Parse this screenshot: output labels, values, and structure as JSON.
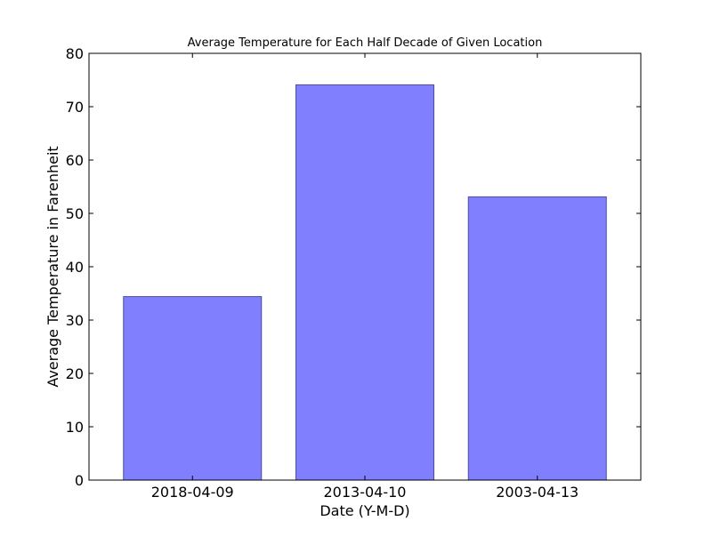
{
  "chart_data": {
    "type": "bar",
    "title": "Average Temperature for Each Half Decade of Given Location",
    "xlabel": "Date (Y-M-D)",
    "ylabel": "Average Temperature in Farenheit",
    "categories": [
      "2018-04-09",
      "2013-04-10",
      "2003-04-13"
    ],
    "values": [
      34.4,
      74.1,
      53.1
    ],
    "ylim": [
      0,
      80
    ],
    "yticks": [
      0,
      10,
      20,
      30,
      40,
      50,
      60,
      70,
      80
    ],
    "grid": false,
    "legend": "none",
    "bar_color": "#8080ff",
    "bar_edge_color": "#4d4d99"
  }
}
